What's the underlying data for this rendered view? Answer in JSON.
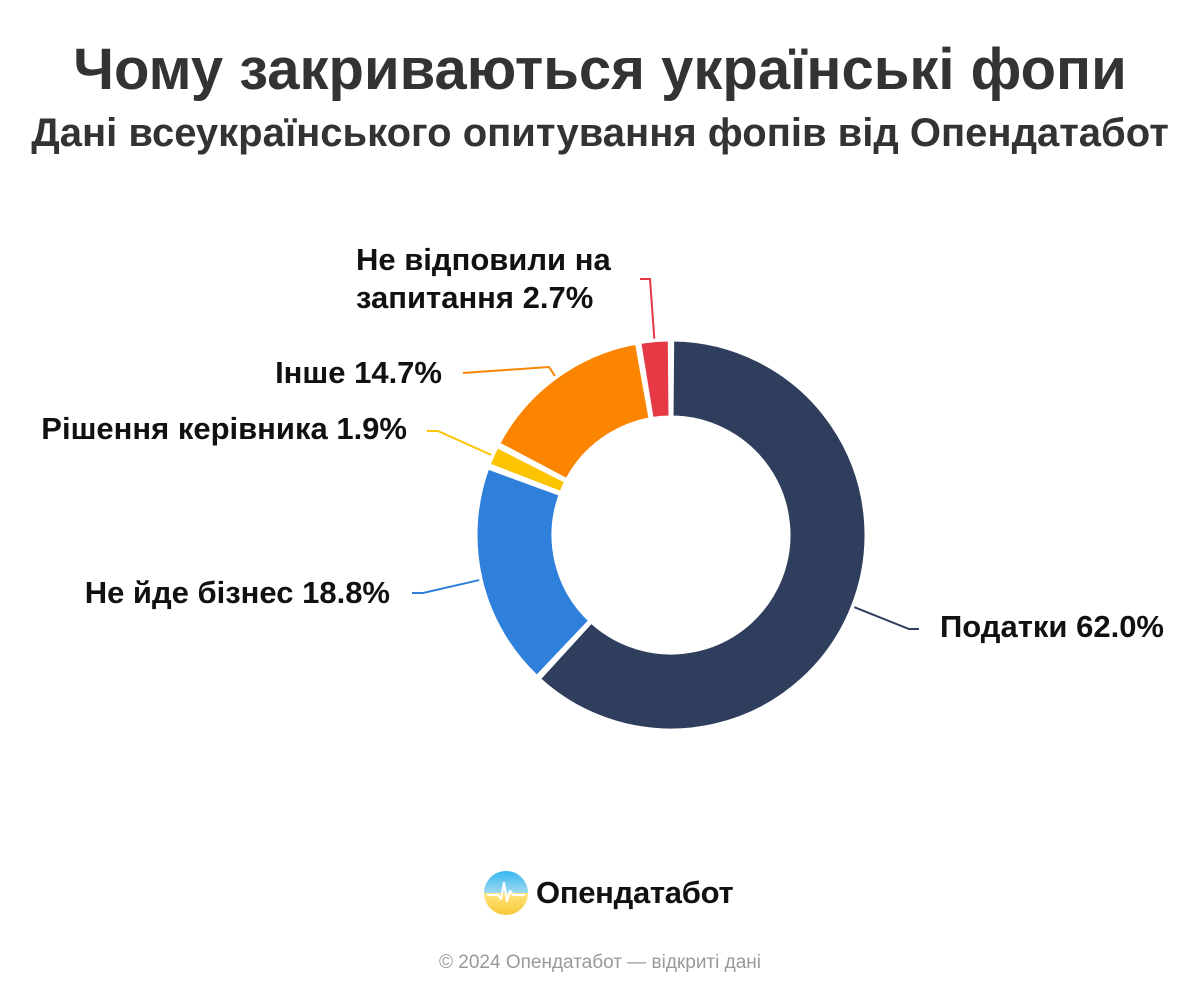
{
  "header": {
    "title": "Чому закриваються українські фопи",
    "subtitle": "Дані всеукраїнського опитування фопів від Опендатабот"
  },
  "chart_data": {
    "type": "pie",
    "variant": "donut",
    "title": "Чому закриваються українські фопи",
    "subtitle": "Дані всеукраїнського опитування фопів від Опендатабот",
    "unit": "%",
    "slices": [
      {
        "label": "Податки",
        "value": 62.0,
        "display": "Податки 62.0%",
        "color": "#2F3E5C"
      },
      {
        "label": "Не йде бізнес",
        "value": 18.8,
        "display": "Не йде бізнес 18.8%",
        "color": "#2E80DB"
      },
      {
        "label": "Рішення керівника",
        "value": 1.9,
        "display": "Рішення керівника 1.9%",
        "color": "#FCC300"
      },
      {
        "label": "Інше",
        "value": 14.7,
        "display": "Інше 14.7%",
        "color": "#FB8500"
      },
      {
        "label": "Не відповили на запитання",
        "value": 2.7,
        "display_lines": [
          "Не відповили на",
          "запитання 2.7%"
        ],
        "color": "#E63946"
      }
    ],
    "legend": "none",
    "labels": "outside-with-leader-lines"
  },
  "brand": {
    "logo_text": "Опендатабот",
    "logo_icon": "opendatabot-logo-icon"
  },
  "footer": {
    "copyright": "© 2024 Опендатабот — відкриті дані"
  }
}
